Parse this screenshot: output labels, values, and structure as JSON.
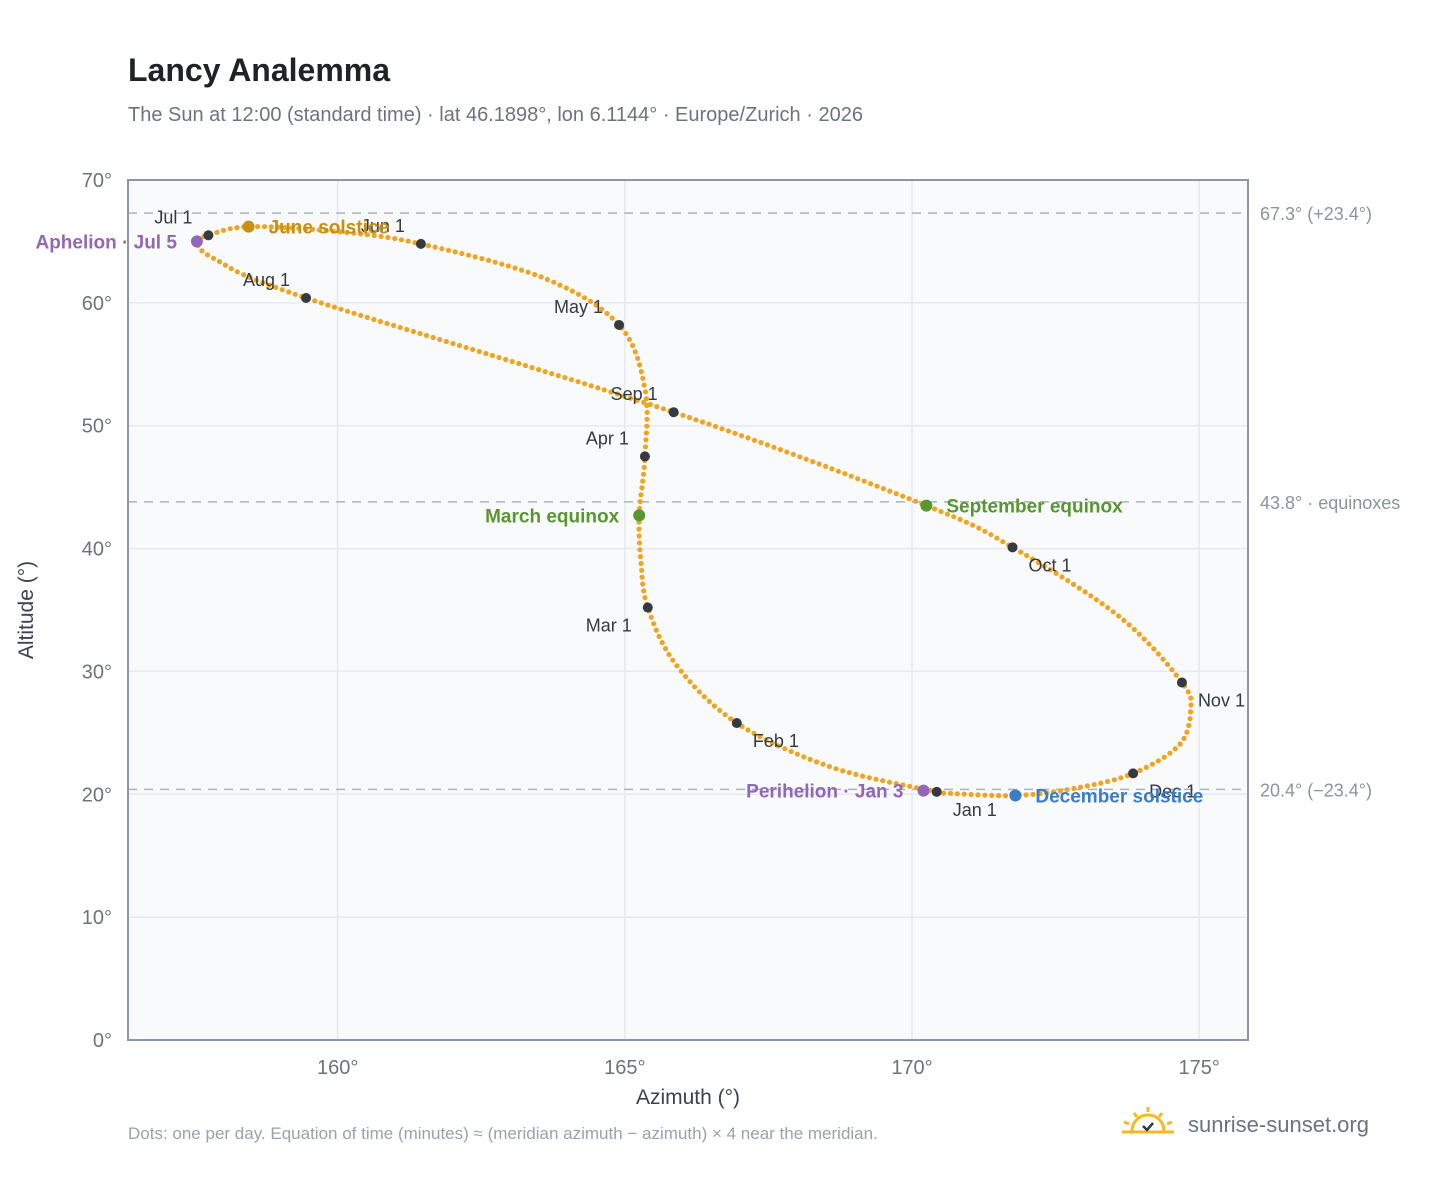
{
  "title": "Lancy Analemma",
  "subtitle": "The Sun at 12:00 (standard time) · lat 46.1898°, lon 6.1144° · Europe/Zurich · 2026",
  "footnote": "Dots: one per day. Equation of time (minutes) ≈ (meridian azimuth − azimuth) × 4 near the meridian.",
  "brand": "sunrise-sunset.org",
  "chart_data": {
    "type": "scatter",
    "title": "Lancy Analemma",
    "xlabel": "Azimuth (°)",
    "ylabel": "Altitude (°)",
    "xlim": [
      156.35,
      175.85
    ],
    "ylim": [
      0,
      70
    ],
    "xticks": [
      160,
      165,
      170,
      175
    ],
    "yticks": [
      0,
      10,
      20,
      30,
      40,
      50,
      60,
      70
    ],
    "tick_suffix": "°",
    "grid": true,
    "colors": {
      "curve": "#f0a522",
      "month_marker": "#343a40",
      "june_solstice": "#c98f10",
      "december_solstice": "#3a7dc4",
      "equinox": "#5a9630",
      "apsis": "#9168b8",
      "reference_line": "#aab4c0",
      "axis": "#8c96a6",
      "grid": "#e6e9ee",
      "plot_bg": "#f8fafc"
    },
    "reference_lines": [
      {
        "y": 67.3,
        "label": "67.3° (+23.4°)"
      },
      {
        "y": 43.8,
        "label": "43.8° · equinoxes"
      },
      {
        "y": 20.4,
        "label": "20.4° (−23.4°)"
      }
    ],
    "curve_path": [
      {
        "date": "Jan 1",
        "az": 170.43,
        "alt": 20.2
      },
      {
        "date": "Jan 16",
        "az": 168.6,
        "alt": 22.2
      },
      {
        "date": "Feb 1",
        "az": 166.95,
        "alt": 25.8
      },
      {
        "date": "Feb 15",
        "az": 165.9,
        "alt": 30.5
      },
      {
        "date": "Mar 1",
        "az": 165.4,
        "alt": 35.2
      },
      {
        "date": "Mar 10",
        "az": 165.28,
        "alt": 39.0
      },
      {
        "date": "Mar 20",
        "az": 165.25,
        "alt": 42.7
      },
      {
        "date": "Apr 1",
        "az": 165.35,
        "alt": 47.5
      },
      {
        "date": "Apr 15",
        "az": 165.35,
        "alt": 53.0
      },
      {
        "date": "May 1",
        "az": 164.9,
        "alt": 58.2
      },
      {
        "date": "May 15",
        "az": 163.6,
        "alt": 62.0
      },
      {
        "date": "Jun 1",
        "az": 161.45,
        "alt": 64.8
      },
      {
        "date": "Jun 10",
        "az": 160.0,
        "alt": 65.8
      },
      {
        "date": "Jun 21",
        "az": 158.45,
        "alt": 66.2
      },
      {
        "date": "Jul 1",
        "az": 157.75,
        "alt": 65.5
      },
      {
        "date": "Jul 5",
        "az": 157.55,
        "alt": 65.0
      },
      {
        "date": "Jul 15",
        "az": 157.85,
        "alt": 63.6
      },
      {
        "date": "Aug 1",
        "az": 159.45,
        "alt": 60.4
      },
      {
        "date": "Sep 1",
        "az": 165.85,
        "alt": 51.1
      },
      {
        "date": "Sep 23",
        "az": 170.25,
        "alt": 43.5
      },
      {
        "date": "Oct 1",
        "az": 171.75,
        "alt": 40.1
      },
      {
        "date": "Oct 16",
        "az": 173.6,
        "alt": 34.5
      },
      {
        "date": "Nov 1",
        "az": 174.7,
        "alt": 29.1
      },
      {
        "date": "Nov 10",
        "az": 174.85,
        "alt": 26.8
      },
      {
        "date": "Nov 20",
        "az": 174.65,
        "alt": 24.0
      },
      {
        "date": "Dec 1",
        "az": 173.85,
        "alt": 21.7
      },
      {
        "date": "Dec 10",
        "az": 172.85,
        "alt": 20.5
      },
      {
        "date": "Dec 21",
        "az": 171.8,
        "alt": 19.9
      },
      {
        "date": "Dec 31",
        "az": 170.55,
        "alt": 20.1
      }
    ],
    "month_markers": [
      {
        "label": "Jan 1",
        "az": 170.43,
        "alt": 20.2,
        "pos": "below-right"
      },
      {
        "label": "Feb 1",
        "az": 166.95,
        "alt": 25.8,
        "pos": "below-right"
      },
      {
        "label": "Mar 1",
        "az": 165.4,
        "alt": 35.2,
        "pos": "below-left"
      },
      {
        "label": "Apr 1",
        "az": 165.35,
        "alt": 47.5,
        "pos": "above-left"
      },
      {
        "label": "May 1",
        "az": 164.9,
        "alt": 58.2,
        "pos": "above-left"
      },
      {
        "label": "Jun 1",
        "az": 161.45,
        "alt": 64.8,
        "pos": "above-left"
      },
      {
        "label": "Jul 1",
        "az": 157.75,
        "alt": 65.5,
        "pos": "above-left"
      },
      {
        "label": "Aug 1",
        "az": 159.45,
        "alt": 60.4,
        "pos": "above-left"
      },
      {
        "label": "Sep 1",
        "az": 165.85,
        "alt": 51.1,
        "pos": "above-left"
      },
      {
        "label": "Oct 1",
        "az": 171.75,
        "alt": 40.1,
        "pos": "below-right"
      },
      {
        "label": "Nov 1",
        "az": 174.7,
        "alt": 29.1,
        "pos": "below-right"
      },
      {
        "label": "Dec 1",
        "az": 173.85,
        "alt": 21.7,
        "pos": "below-right"
      }
    ],
    "key_points": [
      {
        "label": "June solstice",
        "az": 158.45,
        "alt": 66.2,
        "color_key": "june_solstice",
        "anchor": "start"
      },
      {
        "label": "Aphelion · Jul 5",
        "az": 157.55,
        "alt": 65.0,
        "color_key": "apsis",
        "anchor": "end"
      },
      {
        "label": "March equinox",
        "az": 165.25,
        "alt": 42.7,
        "color_key": "equinox",
        "anchor": "end"
      },
      {
        "label": "September equinox",
        "az": 170.25,
        "alt": 43.5,
        "color_key": "equinox",
        "anchor": "start"
      },
      {
        "label": "Perihelion · Jan 3",
        "az": 170.2,
        "alt": 20.3,
        "color_key": "apsis",
        "anchor": "end"
      },
      {
        "label": "December solstice",
        "az": 171.8,
        "alt": 19.9,
        "color_key": "december_solstice",
        "anchor": "start"
      }
    ]
  }
}
